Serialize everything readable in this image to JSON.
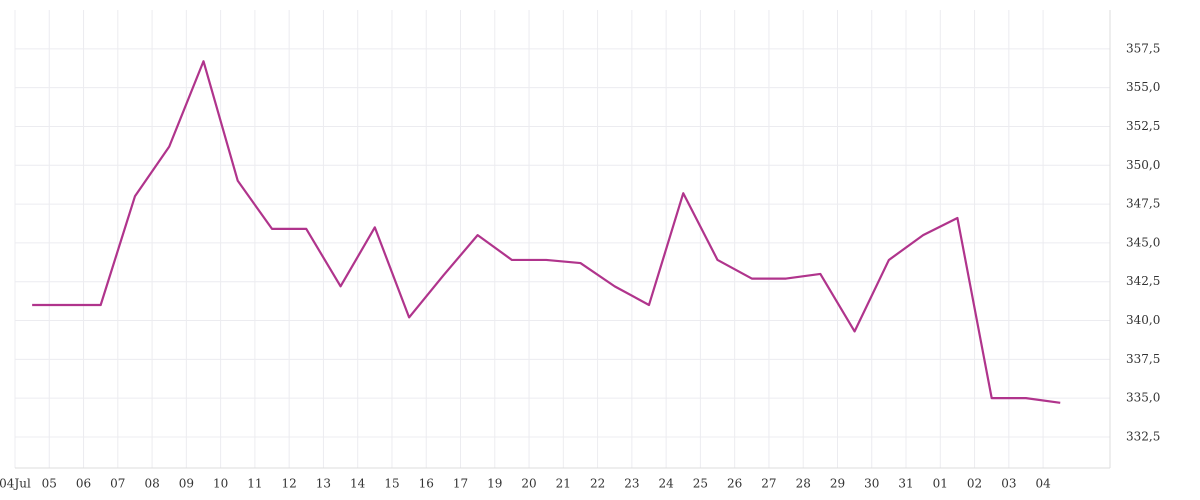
{
  "chart_data": {
    "type": "line",
    "categories": [
      "04Jul",
      "05",
      "06",
      "07",
      "08",
      "09",
      "10",
      "11",
      "12",
      "13",
      "14",
      "15",
      "16",
      "17",
      "19",
      "20",
      "21",
      "22",
      "23",
      "24",
      "25",
      "26",
      "27",
      "28",
      "29",
      "30",
      "31",
      "01",
      "02",
      "03",
      "04"
    ],
    "series": [
      {
        "color": "#b0348c",
        "values": [
          341,
          341,
          341,
          348,
          351.2,
          356.7,
          349,
          345.9,
          345.9,
          342.2,
          346,
          340.2,
          342.9,
          345.5,
          343.9,
          343.9,
          343.7,
          342.2,
          341,
          348.2,
          343.9,
          342.7,
          342.7,
          343,
          339.3,
          343.9,
          345.5,
          346.6,
          335,
          335,
          334.7
        ]
      }
    ],
    "ylim": [
      330.5,
      360
    ],
    "yticks": [
      {
        "value": 332.5,
        "label": "332,5"
      },
      {
        "value": 335,
        "label": "335,0"
      },
      {
        "value": 337.5,
        "label": "337,5"
      },
      {
        "value": 340,
        "label": "340,0"
      },
      {
        "value": 342.5,
        "label": "342,5"
      },
      {
        "value": 345,
        "label": "345,0"
      },
      {
        "value": 347.5,
        "label": "347,5"
      },
      {
        "value": 350,
        "label": "350,0"
      },
      {
        "value": 352.5,
        "label": "352,5"
      },
      {
        "value": 355,
        "label": "355,0"
      },
      {
        "value": 357.5,
        "label": "357,5"
      }
    ],
    "grid": true
  }
}
